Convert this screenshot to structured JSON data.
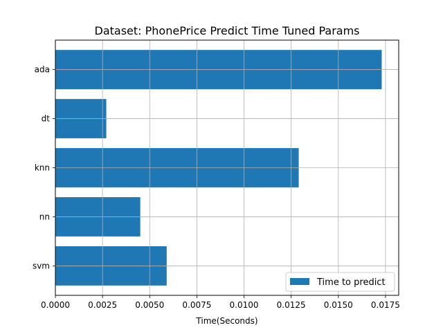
{
  "chart_data": {
    "type": "bar",
    "orientation": "horizontal",
    "title": "Dataset: PhonePrice Predict Time Tuned Params",
    "xlabel": "Time(Seconds)",
    "ylabel": "",
    "categories": [
      "ada",
      "dt",
      "knn",
      "nn",
      "svm"
    ],
    "series": [
      {
        "name": "Time to predict",
        "values": [
          0.0173,
          0.0027,
          0.0129,
          0.0045,
          0.0059
        ],
        "color": "#1f77b4"
      }
    ],
    "xlim": [
      0,
      0.0182
    ],
    "xticks": [
      0.0,
      0.0025,
      0.005,
      0.0075,
      0.01,
      0.0125,
      0.015,
      0.0175
    ],
    "xtick_labels": [
      "0.0000",
      "0.0025",
      "0.0050",
      "0.0075",
      "0.0100",
      "0.0125",
      "0.0150",
      "0.0175"
    ],
    "grid": true,
    "legend_position": "lower-right"
  }
}
